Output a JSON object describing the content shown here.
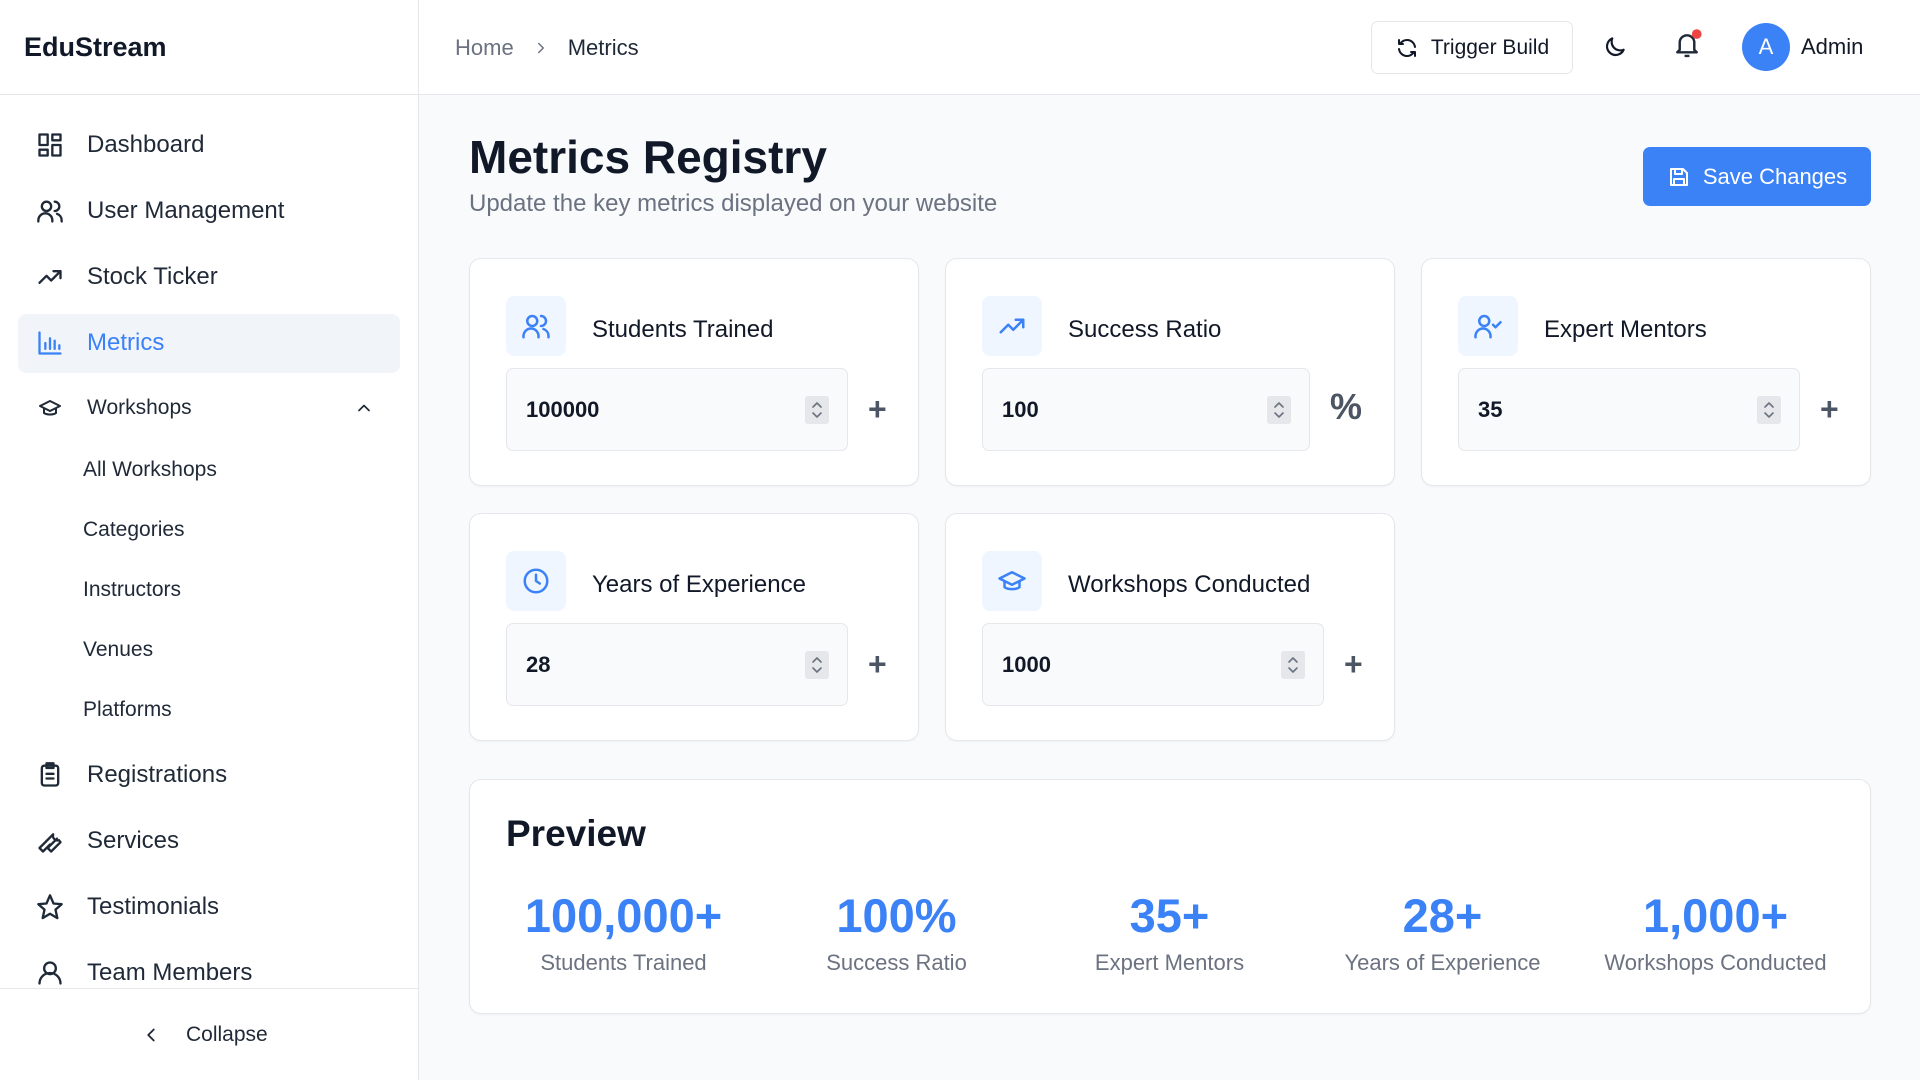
{
  "sidebar": {
    "brand": "EduStream",
    "nav": [
      "Dashboard",
      "User Management",
      "Stock Ticker",
      "Metrics"
    ],
    "group": {
      "label": "Workshops",
      "items": [
        "All Workshops",
        "Categories",
        "Instructors",
        "Venues",
        "Platforms"
      ]
    },
    "nav_after": [
      "Registrations",
      "Services",
      "Testimonials",
      "Team Members"
    ],
    "collapse": "Collapse"
  },
  "header": {
    "breadcrumb": [
      "Home",
      "Metrics"
    ],
    "trigger_build": "Trigger Build",
    "avatar": "A",
    "user": "Admin"
  },
  "page": {
    "title": "Metrics Registry",
    "subtitle": "Update the key metrics displayed on your website",
    "save": "Save Changes"
  },
  "metrics": [
    {
      "label": "Students Trained",
      "value": "100000",
      "suffix": "+"
    },
    {
      "label": "Success Ratio",
      "value": "100",
      "suffix": "%"
    },
    {
      "label": "Expert Mentors",
      "value": "35",
      "suffix": "+"
    },
    {
      "label": "Years of Experience",
      "value": "28",
      "suffix": "+"
    },
    {
      "label": "Workshops Conducted",
      "value": "1000",
      "suffix": "+"
    }
  ],
  "preview": {
    "title": "Preview",
    "items": [
      {
        "value": "100,000+",
        "label": "Students Trained"
      },
      {
        "value": "100%",
        "label": "Success Ratio"
      },
      {
        "value": "35+",
        "label": "Expert Mentors"
      },
      {
        "value": "28+",
        "label": "Years of Experience"
      },
      {
        "value": "1,000+",
        "label": "Workshops Conducted"
      }
    ]
  }
}
